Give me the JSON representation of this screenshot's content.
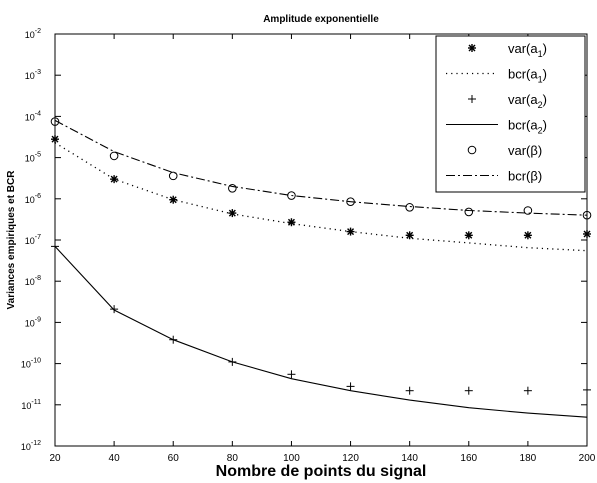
{
  "chart_data": {
    "type": "line",
    "title": "Amplitude exponentielle",
    "xlabel": "Nombre de points du signal",
    "ylabel": "Variances empiriques et BCR",
    "xlim": [
      20,
      200
    ],
    "ylim": [
      1e-12,
      0.01
    ],
    "yscale": "log",
    "grid": false,
    "legend_position": "top-right",
    "x_ticks": [
      "20",
      "40",
      "60",
      "80",
      "100",
      "120",
      "140",
      "160",
      "180",
      "200"
    ],
    "y_ticks": [
      {
        "base": "10",
        "exp": "-12"
      },
      {
        "base": "10",
        "exp": "-11"
      },
      {
        "base": "10",
        "exp": "-10"
      },
      {
        "base": "10",
        "exp": "-9"
      },
      {
        "base": "10",
        "exp": "-8"
      },
      {
        "base": "10",
        "exp": "-7"
      },
      {
        "base": "10",
        "exp": "-6"
      },
      {
        "base": "10",
        "exp": "-5"
      },
      {
        "base": "10",
        "exp": "-4"
      },
      {
        "base": "10",
        "exp": "-3"
      },
      {
        "base": "10",
        "exp": "-2"
      }
    ],
    "x": [
      20,
      40,
      60,
      80,
      100,
      120,
      140,
      160,
      180,
      200
    ],
    "series": [
      {
        "name": "var(a1)",
        "legend_text": "var(a",
        "legend_sub": "1",
        "legend_suffix": ")",
        "style": "star-marker",
        "values": [
          2.8e-05,
          3e-06,
          9.5e-07,
          4.5e-07,
          2.7e-07,
          1.6e-07,
          1.3e-07,
          1.3e-07,
          1.3e-07,
          1.4e-07
        ]
      },
      {
        "name": "bcr(a1)",
        "legend_text": "bcr(a",
        "legend_sub": "1",
        "legend_suffix": ")",
        "style": "dotted-line",
        "values": [
          2.3e-05,
          3e-06,
          9.5e-07,
          4.3e-07,
          2.5e-07,
          1.6e-07,
          1.1e-07,
          8.5e-08,
          6.5e-08,
          5.5e-08
        ]
      },
      {
        "name": "var(a2)",
        "legend_text": "var(a",
        "legend_sub": "2",
        "legend_suffix": ")",
        "style": "plus-marker",
        "values": [
          7e-08,
          2.1e-09,
          3.8e-10,
          1.1e-10,
          5.5e-11,
          2.8e-11,
          2.2e-11,
          2.2e-11,
          2.2e-11,
          2.3e-11
        ]
      },
      {
        "name": "bcr(a2)",
        "legend_text": "bcr(a",
        "legend_sub": "2",
        "legend_suffix": ")",
        "style": "solid-line",
        "values": [
          7e-08,
          2e-09,
          3.8e-10,
          1.1e-10,
          4.3e-11,
          2.2e-11,
          1.3e-11,
          8.5e-12,
          6.3e-12,
          5e-12
        ]
      },
      {
        "name": "var(β)",
        "legend_text": "var(β)",
        "legend_sub": "",
        "legend_suffix": "",
        "style": "circle-marker",
        "values": [
          7.5e-05,
          1.1e-05,
          3.6e-06,
          1.8e-06,
          1.2e-06,
          8.5e-07,
          6.2e-07,
          4.8e-07,
          5.2e-07,
          4e-07
        ]
      },
      {
        "name": "bcr(β)",
        "legend_text": "bcr(β)",
        "legend_sub": "",
        "legend_suffix": "",
        "style": "dashdot-line",
        "values": [
          8e-05,
          1.4e-05,
          4.3e-06,
          2e-06,
          1.2e-06,
          8.5e-07,
          6.5e-07,
          5.2e-07,
          4.5e-07,
          4e-07
        ]
      }
    ]
  }
}
